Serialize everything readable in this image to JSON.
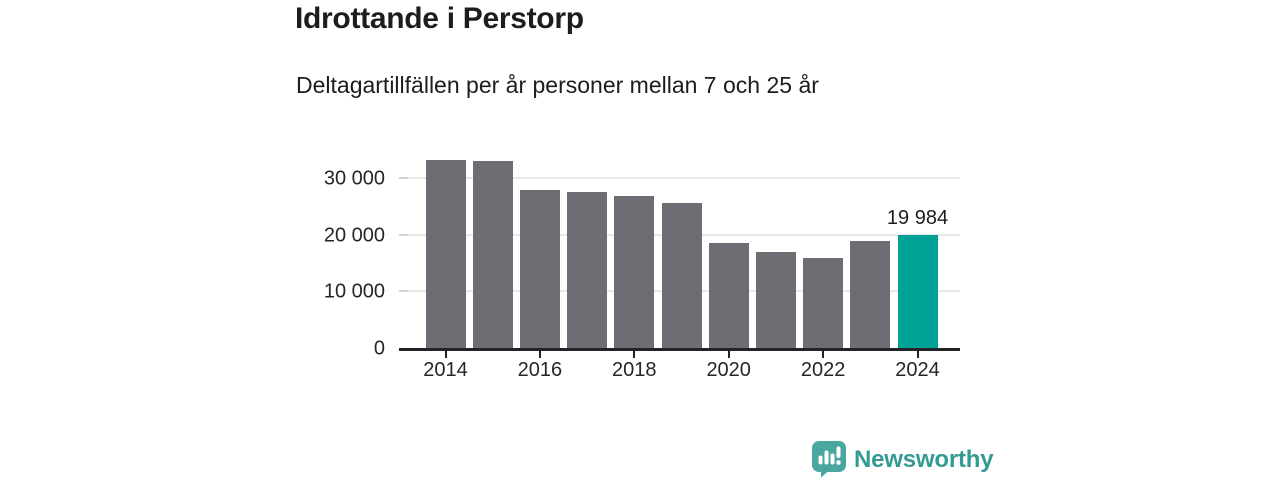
{
  "header": {
    "title": "Idrottande i Perstorp",
    "subtitle": "Deltagartillfällen per år personer mellan 7 och 25 år"
  },
  "chart_data": {
    "type": "bar",
    "title": "Idrottande i Perstorp",
    "subtitle": "Deltagartillfällen per år personer mellan 7 och 25 år",
    "categories": [
      "2014",
      "2015",
      "2016",
      "2017",
      "2018",
      "2019",
      "2020",
      "2021",
      "2022",
      "2023",
      "2024"
    ],
    "values": [
      33200,
      33000,
      28000,
      27600,
      26900,
      25700,
      18600,
      17000,
      15900,
      19000,
      19984
    ],
    "highlight_index": 10,
    "bar_color": "#6d6d73",
    "highlight_color": "#00a295",
    "grid_color": "#e8e8e8",
    "tick_stub_color": "#d2d2d2",
    "axis_color": "#232327",
    "grid": "horizontal",
    "legend": "none",
    "ylim": [
      0,
      35000
    ],
    "yticks": [
      {
        "value": 0,
        "label": "0"
      },
      {
        "value": 10000,
        "label": "10 000"
      },
      {
        "value": 20000,
        "label": "20 000"
      },
      {
        "value": 30000,
        "label": "30 000"
      }
    ],
    "xticks": [
      "2014",
      "2016",
      "2018",
      "2020",
      "2022",
      "2024"
    ],
    "data_label": {
      "index": 10,
      "text": "19 984"
    },
    "xlabel": "",
    "ylabel": ""
  },
  "footer": {
    "brand": "Newsworthy",
    "logo_color": "#4aa7a0",
    "text_color": "#339a94"
  }
}
